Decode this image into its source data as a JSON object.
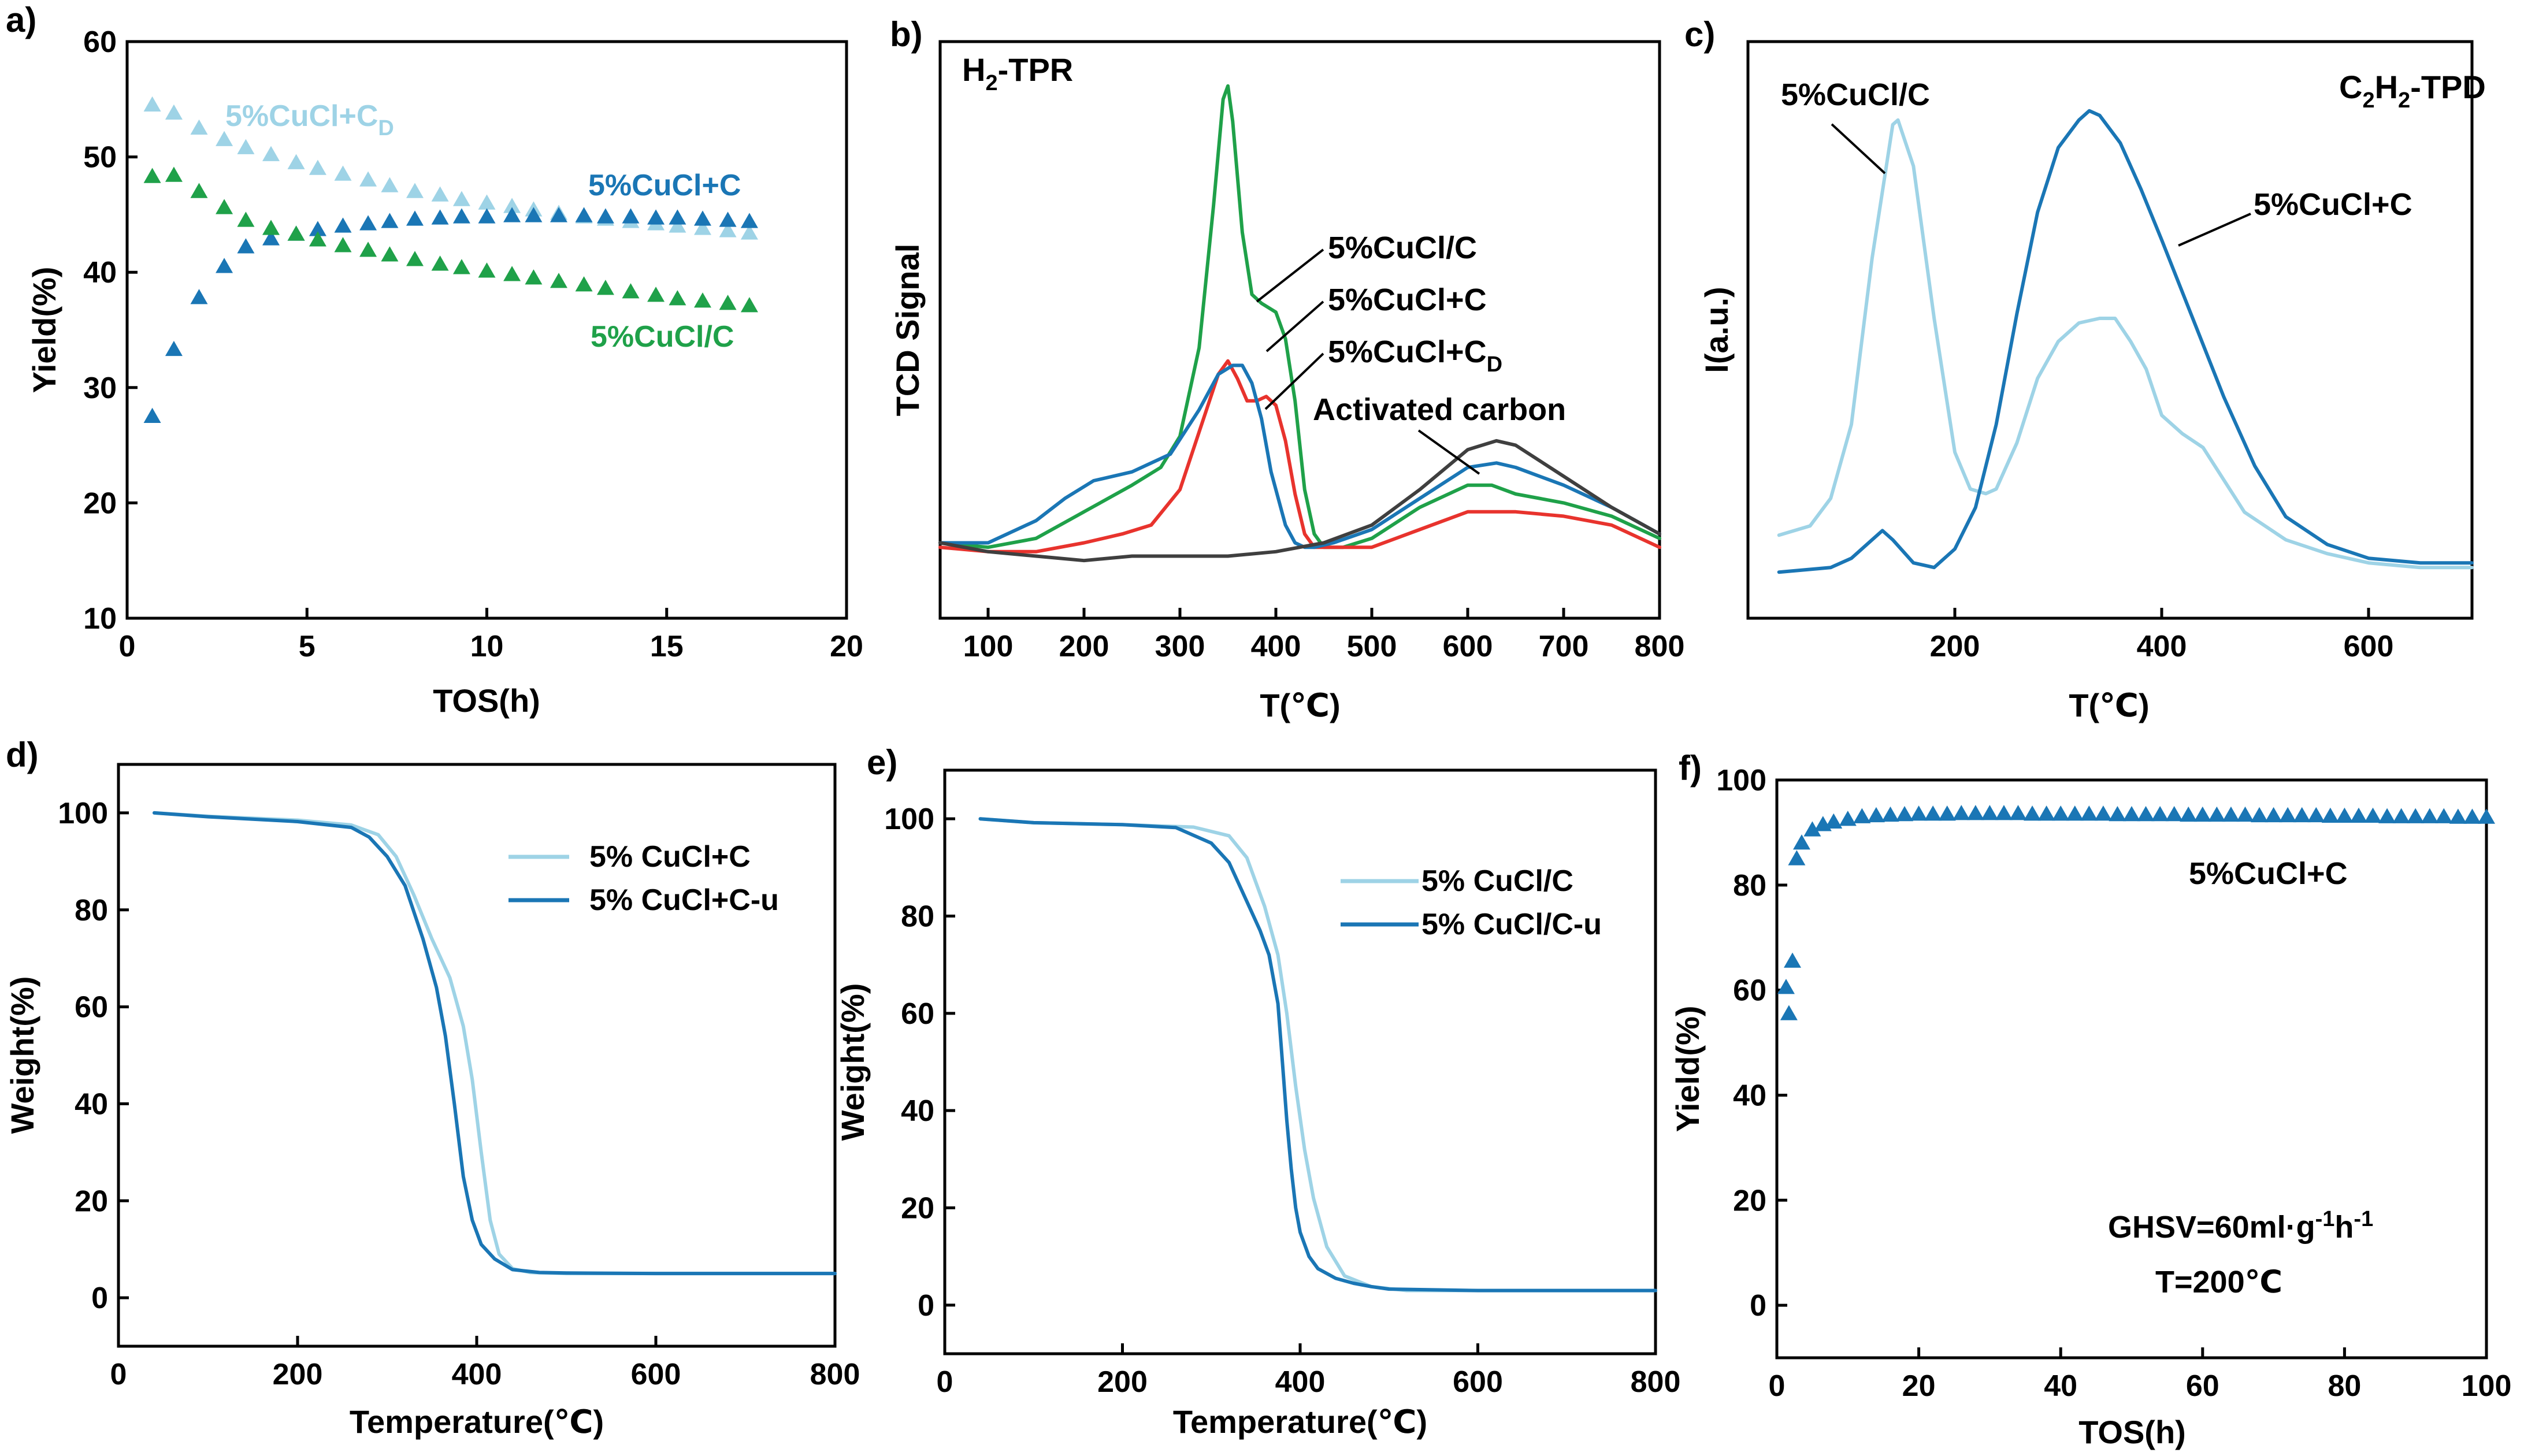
{
  "colors": {
    "light_blue": "#9ED3E6",
    "dark_blue": "#1A76B5",
    "green": "#1FA149",
    "red": "#E8332D",
    "gray": "#3F3F3F",
    "black": "#000000"
  },
  "chart_data": [
    {
      "panel": "a)",
      "type": "scatter",
      "title": "",
      "xlabel": "TOS(h)",
      "ylabel": "Yield(%)",
      "xlim": [
        0,
        20
      ],
      "ylim": [
        10,
        60
      ],
      "xticks": [
        0,
        5,
        10,
        15,
        20
      ],
      "yticks": [
        10,
        20,
        30,
        40,
        50,
        60
      ],
      "series": [
        {
          "name": "5%CuCl+C",
          "label_main": "5%CuCl+C",
          "label_sub": "D",
          "color": "#9ED3E6",
          "marker": "triangle",
          "x": [
            0.7,
            1.3,
            2.0,
            2.7,
            3.3,
            4.0,
            4.7,
            5.3,
            6.0,
            6.7,
            7.3,
            8.0,
            8.7,
            9.3,
            10.0,
            10.7,
            11.3,
            12.0,
            12.7,
            13.3,
            14.0,
            14.7,
            15.3,
            16.0,
            16.7,
            17.3
          ],
          "y": [
            54.5,
            53.8,
            52.5,
            51.5,
            50.8,
            50.2,
            49.5,
            49.0,
            48.5,
            48.0,
            47.5,
            47.0,
            46.7,
            46.3,
            46.0,
            45.7,
            45.4,
            45.1,
            44.8,
            44.6,
            44.4,
            44.2,
            44.0,
            43.8,
            43.6,
            43.4
          ]
        },
        {
          "name": "5%CuCl+C",
          "label_main": "5%CuCl+C",
          "label_sub": "",
          "color": "#1A76B5",
          "marker": "triangle",
          "x": [
            0.7,
            1.3,
            2.0,
            2.7,
            3.3,
            4.0,
            4.7,
            5.3,
            6.0,
            6.7,
            7.3,
            8.0,
            8.7,
            9.3,
            10.0,
            10.7,
            11.3,
            12.0,
            12.7,
            13.3,
            14.0,
            14.7,
            15.3,
            16.0,
            16.7,
            17.3
          ],
          "y": [
            27.5,
            33.3,
            37.8,
            40.5,
            42.2,
            42.9,
            43.3,
            43.7,
            44.0,
            44.2,
            44.4,
            44.6,
            44.7,
            44.8,
            44.8,
            44.9,
            44.9,
            44.9,
            44.9,
            44.8,
            44.8,
            44.7,
            44.7,
            44.6,
            44.5,
            44.4
          ]
        },
        {
          "name": "5%CuCl/C",
          "label_main": "5%CuCl/C",
          "label_sub": "",
          "color": "#1FA149",
          "marker": "triangle",
          "x": [
            0.7,
            1.3,
            2.0,
            2.7,
            3.3,
            4.0,
            4.7,
            5.3,
            6.0,
            6.7,
            7.3,
            8.0,
            8.7,
            9.3,
            10.0,
            10.7,
            11.3,
            12.0,
            12.7,
            13.3,
            14.0,
            14.7,
            15.3,
            16.0,
            16.7,
            17.3
          ],
          "y": [
            48.3,
            48.4,
            47.0,
            45.6,
            44.5,
            43.8,
            43.3,
            42.8,
            42.3,
            41.9,
            41.5,
            41.1,
            40.7,
            40.4,
            40.1,
            39.8,
            39.5,
            39.2,
            38.9,
            38.6,
            38.3,
            38.0,
            37.7,
            37.5,
            37.3,
            37.1
          ]
        }
      ]
    },
    {
      "panel": "b)",
      "type": "line",
      "title": "H2-TPR",
      "title_main": "H",
      "title_sub": "2",
      "title_rest": "-TPR",
      "xlabel": "T(℃)",
      "ylabel": "TCD Signal",
      "xlim": [
        50,
        800
      ],
      "ylim": [
        -0.15,
        1.15
      ],
      "xticks": [
        100,
        200,
        300,
        400,
        500,
        600,
        700,
        800
      ],
      "yticks": [],
      "series": [
        {
          "name": "5%CuCl/C",
          "label_main": "5%CuCl/C",
          "label_sub": "",
          "color": "#1FA149",
          "x": [
            50,
            100,
            150,
            200,
            250,
            280,
            300,
            320,
            335,
            345,
            350,
            355,
            365,
            375,
            385,
            400,
            410,
            420,
            430,
            440,
            450,
            470,
            500,
            550,
            600,
            625,
            650,
            700,
            750,
            800
          ],
          "y": [
            0.02,
            0.01,
            0.03,
            0.09,
            0.15,
            0.19,
            0.26,
            0.46,
            0.78,
            1.02,
            1.05,
            0.97,
            0.72,
            0.58,
            0.56,
            0.54,
            0.48,
            0.34,
            0.14,
            0.04,
            0.01,
            0.01,
            0.03,
            0.1,
            0.15,
            0.15,
            0.13,
            0.11,
            0.08,
            0.03
          ]
        },
        {
          "name": "5%CuCl+C",
          "label_main": "5%CuCl+C",
          "label_sub": "",
          "color": "#E8332D",
          "x": [
            50,
            100,
            150,
            200,
            240,
            270,
            300,
            320,
            340,
            350,
            360,
            370,
            380,
            390,
            400,
            410,
            420,
            430,
            440,
            460,
            500,
            550,
            600,
            650,
            700,
            750,
            800
          ],
          "y": [
            0.01,
            0.0,
            0.0,
            0.02,
            0.04,
            0.06,
            0.14,
            0.27,
            0.4,
            0.43,
            0.39,
            0.34,
            0.34,
            0.35,
            0.33,
            0.25,
            0.13,
            0.04,
            0.01,
            0.01,
            0.01,
            0.05,
            0.09,
            0.09,
            0.08,
            0.06,
            0.01
          ]
        },
        {
          "name": "5%CuCl+C",
          "label_main": "5%CuCl+C",
          "label_sub": "D",
          "color": "#1A76B5",
          "x": [
            50,
            100,
            150,
            180,
            210,
            250,
            290,
            320,
            340,
            355,
            365,
            375,
            385,
            395,
            410,
            420,
            430,
            440,
            460,
            500,
            550,
            600,
            630,
            650,
            700,
            750,
            800
          ],
          "y": [
            0.02,
            0.02,
            0.07,
            0.12,
            0.16,
            0.18,
            0.22,
            0.32,
            0.4,
            0.42,
            0.42,
            0.38,
            0.3,
            0.18,
            0.06,
            0.02,
            0.01,
            0.01,
            0.02,
            0.05,
            0.12,
            0.19,
            0.2,
            0.19,
            0.15,
            0.1,
            0.04
          ]
        },
        {
          "name": "Activated carbon",
          "label_main": "Activated carbon",
          "label_sub": "",
          "color": "#3F3F3F",
          "x": [
            50,
            100,
            150,
            200,
            250,
            300,
            350,
            400,
            450,
            500,
            550,
            600,
            630,
            650,
            700,
            750,
            800
          ],
          "y": [
            0.02,
            0.0,
            -0.01,
            -0.02,
            -0.01,
            -0.01,
            -0.01,
            0.0,
            0.02,
            0.06,
            0.14,
            0.23,
            0.25,
            0.24,
            0.17,
            0.1,
            0.04
          ]
        }
      ]
    },
    {
      "panel": "c)",
      "type": "line",
      "title": "C2H2-TPD",
      "xlabel": "T(℃)",
      "ylabel": "I(a.u.)",
      "xlim": [
        0,
        700
      ],
      "ylim": [
        -0.1,
        1.15
      ],
      "xticks": [
        200,
        400,
        600
      ],
      "yticks": [],
      "series": [
        {
          "name": "5%CuCl/C",
          "label_main": "5%CuCl/C",
          "label_sub": "",
          "color": "#9ED3E6",
          "x": [
            30,
            60,
            80,
            100,
            120,
            140,
            145,
            160,
            180,
            200,
            215,
            230,
            240,
            260,
            280,
            300,
            320,
            340,
            355,
            370,
            385,
            400,
            420,
            440,
            460,
            480,
            520,
            560,
            600,
            650,
            700
          ],
          "y": [
            0.08,
            0.1,
            0.16,
            0.32,
            0.68,
            0.97,
            0.98,
            0.88,
            0.55,
            0.26,
            0.18,
            0.17,
            0.18,
            0.28,
            0.42,
            0.5,
            0.54,
            0.55,
            0.55,
            0.5,
            0.44,
            0.34,
            0.3,
            0.27,
            0.2,
            0.13,
            0.07,
            0.04,
            0.02,
            0.01,
            0.01
          ]
        },
        {
          "name": "5%CuCl+C",
          "label_main": "5%CuCl+C",
          "label_sub": "",
          "color": "#1A76B5",
          "x": [
            30,
            80,
            100,
            120,
            130,
            140,
            160,
            180,
            200,
            220,
            240,
            260,
            280,
            300,
            320,
            330,
            340,
            360,
            380,
            400,
            430,
            460,
            490,
            520,
            560,
            600,
            650,
            700
          ],
          "y": [
            0.0,
            0.01,
            0.03,
            0.07,
            0.09,
            0.07,
            0.02,
            0.01,
            0.05,
            0.14,
            0.32,
            0.56,
            0.78,
            0.92,
            0.98,
            1.0,
            0.99,
            0.93,
            0.83,
            0.72,
            0.55,
            0.38,
            0.23,
            0.12,
            0.06,
            0.03,
            0.02,
            0.02
          ]
        }
      ]
    },
    {
      "panel": "d)",
      "type": "line",
      "title": "",
      "xlabel": "Temperature(℃)",
      "ylabel": "Weight(%)",
      "xlim": [
        0,
        800
      ],
      "ylim": [
        -10,
        110
      ],
      "xticks": [
        0,
        200,
        400,
        600,
        800
      ],
      "yticks": [
        0,
        20,
        40,
        60,
        80,
        100
      ],
      "series": [
        {
          "name": "5% CuCl+C",
          "label_main": "5% CuCl+C",
          "label_sub": "",
          "color": "#9ED3E6",
          "x": [
            40,
            100,
            200,
            260,
            290,
            310,
            330,
            350,
            370,
            385,
            395,
            405,
            415,
            425,
            440,
            460,
            500,
            600,
            700,
            800
          ],
          "y": [
            100,
            99.3,
            98.5,
            97.5,
            95.5,
            91,
            83,
            74,
            66,
            56,
            45,
            30,
            16,
            9,
            6,
            5.2,
            5,
            5,
            5,
            5
          ]
        },
        {
          "name": "5% CuCl+C-u",
          "label_main": "5% CuCl+C-u",
          "label_sub": "",
          "color": "#1A76B5",
          "x": [
            40,
            100,
            200,
            260,
            280,
            300,
            320,
            340,
            355,
            365,
            375,
            385,
            395,
            405,
            420,
            440,
            470,
            500,
            600,
            700,
            800
          ],
          "y": [
            100,
            99.2,
            98.2,
            97,
            95,
            91,
            85,
            74,
            64,
            54,
            40,
            25,
            16,
            11,
            8,
            5.8,
            5.2,
            5.1,
            5,
            5,
            5
          ]
        }
      ]
    },
    {
      "panel": "e)",
      "type": "line",
      "title": "",
      "xlabel": "Temperature(℃)",
      "ylabel": "Weight(%)",
      "xlim": [
        0,
        800
      ],
      "ylim": [
        -10,
        110
      ],
      "xticks": [
        0,
        200,
        400,
        600,
        800
      ],
      "yticks": [
        0,
        20,
        40,
        60,
        80,
        100
      ],
      "series": [
        {
          "name": "5% CuCl/C",
          "label_main": "5% CuCl/C",
          "label_sub": "",
          "color": "#9ED3E6",
          "x": [
            40,
            100,
            200,
            280,
            320,
            340,
            360,
            375,
            385,
            395,
            405,
            415,
            430,
            450,
            480,
            520,
            600,
            700,
            800
          ],
          "y": [
            100,
            99.2,
            98.8,
            98.3,
            96.5,
            92,
            82,
            72,
            60,
            45,
            32,
            22,
            12,
            6,
            3.8,
            3,
            3,
            3,
            3
          ]
        },
        {
          "name": "5% CuCl/C-u",
          "label_main": "5% CuCl/C-u",
          "label_sub": "",
          "color": "#1A76B5",
          "x": [
            40,
            100,
            200,
            260,
            300,
            320,
            340,
            355,
            365,
            375,
            380,
            385,
            390,
            395,
            400,
            410,
            420,
            440,
            460,
            480,
            500,
            600,
            700,
            800
          ],
          "y": [
            100,
            99.2,
            98.8,
            98.2,
            95,
            91,
            83,
            77,
            72,
            62,
            50,
            38,
            28,
            20,
            15,
            10,
            7.5,
            5.5,
            4.5,
            3.8,
            3.3,
            3,
            3,
            3
          ]
        }
      ]
    },
    {
      "panel": "f)",
      "type": "scatter",
      "title": "",
      "xlabel": "TOS(h)",
      "ylabel": "Yield(%)",
      "xlim": [
        0,
        100
      ],
      "ylim": [
        -10,
        100
      ],
      "xticks": [
        0,
        20,
        40,
        60,
        80,
        100
      ],
      "yticks": [
        0,
        20,
        40,
        60,
        80,
        100
      ],
      "series": [
        {
          "name": "5%CuCl+C",
          "label_main": "5%CuCl+C",
          "label_sub": "",
          "color": "#1A76B5",
          "marker": "triangle",
          "x": [
            1.3,
            1.7,
            2.2,
            2.8,
            3.5,
            5,
            6.5,
            8,
            10,
            12,
            14,
            16,
            18,
            20,
            22,
            24,
            26,
            28,
            30,
            32,
            34,
            36,
            38,
            40,
            42,
            44,
            46,
            48,
            50,
            52,
            54,
            56,
            58,
            60,
            62,
            64,
            66,
            68,
            70,
            72,
            74,
            76,
            78,
            80,
            82,
            84,
            86,
            88,
            90,
            92,
            94,
            96,
            98,
            100
          ],
          "y": [
            60.5,
            55.5,
            65.5,
            85,
            88,
            90.5,
            91.5,
            92,
            92.5,
            93,
            93.2,
            93.3,
            93.4,
            93.5,
            93.5,
            93.5,
            93.6,
            93.6,
            93.6,
            93.6,
            93.6,
            93.5,
            93.5,
            93.5,
            93.5,
            93.5,
            93.5,
            93.4,
            93.4,
            93.4,
            93.4,
            93.4,
            93.3,
            93.3,
            93.3,
            93.3,
            93.3,
            93.2,
            93.2,
            93.2,
            93.2,
            93.2,
            93.1,
            93.1,
            93.1,
            93.1,
            93.0,
            93.0,
            93.0,
            93.0,
            93.0,
            92.9,
            92.9,
            92.9
          ]
        }
      ]
    }
  ],
  "annotations": {
    "b_cucl_c": "5%CuCl/C",
    "b_cucl_plus_c": "5%CuCl+C",
    "b_cucl_plus_cd_main": "5%CuCl+C",
    "b_cucl_plus_cd_sub": "D",
    "b_activated": "Activated carbon",
    "c_cucl_c": "5%CuCl/C",
    "c_cucl_plus_c": "5%CuCl+C",
    "c_title_main": "C",
    "c_title_sub1": "2",
    "c_title_mid": "H",
    "c_title_sub2": "2",
    "c_title_rest": "-TPD",
    "f_series_label": "5%CuCl+C",
    "f_ghsv_main": "GHSV=60ml·g",
    "f_ghsv_sup1": "-1",
    "f_ghsv_h": "h",
    "f_ghsv_sup2": "-1",
    "f_temp": "T=200℃"
  }
}
